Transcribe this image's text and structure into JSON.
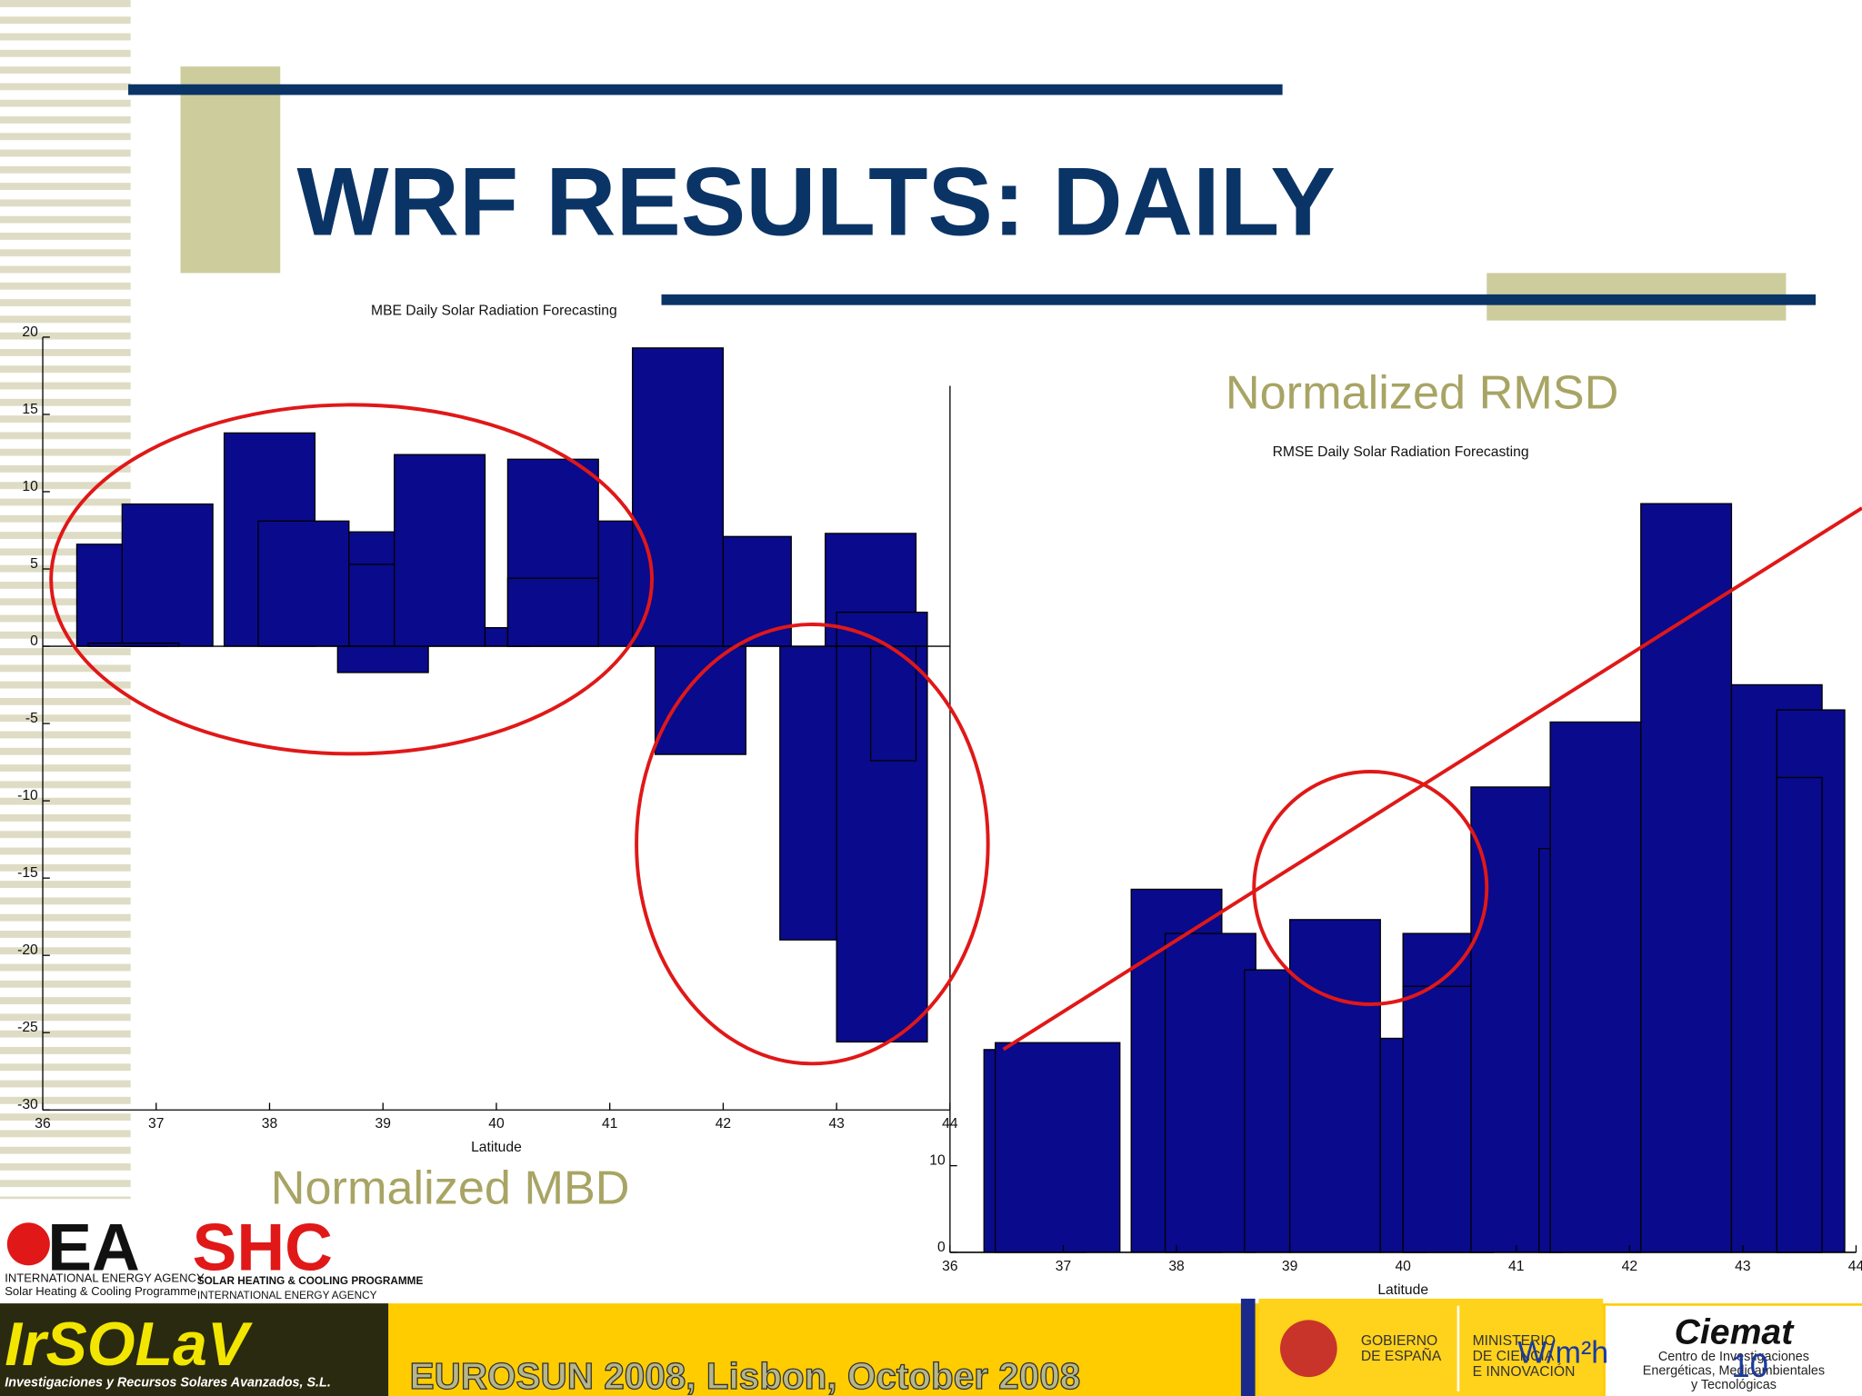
{
  "slide": {
    "title": "WRF RESULTS: DAILY",
    "label_rmsd": "Normalized RMSD",
    "label_mbd": "Normalized MBD",
    "unit": "W/m²h",
    "page_number": "10",
    "footer": "EUROSUN 2008, Lisbon, October 2008",
    "logos": {
      "iea_left": "EA",
      "iea_right": "SHC",
      "iea_line1": "INTERNATIONAL ENERGY AGENCY",
      "iea_line2": "Solar Heating & Cooling Programme",
      "shc_line1": "SOLAR HEATING & COOLING PROGRAMME",
      "shc_line2": "INTERNATIONAL ENERGY AGENCY",
      "irsolav": "IrSOLaV",
      "irsolav_sub": "Investigaciones y Recursos Solares Avanzados, S.L.",
      "gobierno": [
        "GOBIERNO",
        "DE ESPAÑA"
      ],
      "ministerio": [
        "MINISTERIO",
        "DE CIENCIA",
        "E INNOVACIÓN"
      ],
      "ciemat": "Ciemat",
      "ciemat_sub": [
        "Centro de Investigaciones",
        "Energéticas, Medioambientales",
        "y Tecnológicas"
      ]
    }
  },
  "chart_data": [
    {
      "type": "bar",
      "title": "MBE Daily Solar Radiation Forecasting",
      "xlabel": "Latitude",
      "color": "#0a0a8c",
      "x_left": [
        36.3,
        36.7,
        36.4,
        37.6,
        37.9,
        38.7,
        38.7,
        38.6,
        39.1,
        39.9,
        40.1,
        40.1,
        40.9,
        41.2,
        41.4,
        42.0,
        42.9,
        43.0,
        42.5,
        43.0,
        43.3
      ],
      "x_right": [
        37.1,
        37.5,
        37.2,
        38.4,
        38.7,
        39.1,
        39.1,
        39.4,
        39.9,
        40.3,
        40.9,
        40.9,
        41.3,
        42.0,
        42.2,
        42.6,
        43.7,
        43.8,
        43.3,
        43.8,
        43.7
      ],
      "values": [
        6.6,
        9.2,
        0.2,
        13.8,
        8.1,
        7.4,
        5.3,
        -1.7,
        12.4,
        1.2,
        12.1,
        4.4,
        8.1,
        19.3,
        -7.0,
        7.1,
        7.3,
        2.2,
        -19.0,
        -25.6,
        -7.4
      ],
      "xlim": [
        36,
        44
      ],
      "ylim": [
        -30,
        20
      ],
      "xticks": [
        36,
        37,
        38,
        39,
        40,
        41,
        42,
        43,
        44
      ],
      "yticks": [
        20,
        15,
        10,
        5,
        0,
        -5,
        -10,
        -15,
        -20,
        -25,
        -30
      ]
    },
    {
      "type": "bar",
      "title": "RMSE Daily Solar Radiation Forecasting",
      "xlabel": "Latitude",
      "color": "#0a0a8c",
      "x_left": [
        36.3,
        36.4,
        37.6,
        37.9,
        38.6,
        39.0,
        39.8,
        40.0,
        40.0,
        40.6,
        41.2,
        41.3,
        42.1,
        42.9,
        43.3,
        43.3
      ],
      "x_right": [
        37.2,
        37.5,
        38.4,
        38.7,
        39.0,
        39.8,
        40.2,
        40.8,
        40.8,
        41.4,
        42.1,
        42.1,
        42.9,
        43.7,
        43.9,
        43.7
      ],
      "values": [
        23.4,
        24.2,
        41.9,
        36.8,
        32.6,
        38.4,
        24.7,
        36.8,
        30.7,
        53.7,
        46.6,
        61.2,
        86.4,
        65.5,
        62.6,
        54.8
      ],
      "xlim": [
        36,
        44
      ],
      "ylim": [
        0,
        100
      ],
      "xticks": [
        36,
        37,
        38,
        39,
        40,
        41,
        42,
        43,
        44
      ],
      "yticks": [
        0,
        10
      ]
    }
  ]
}
